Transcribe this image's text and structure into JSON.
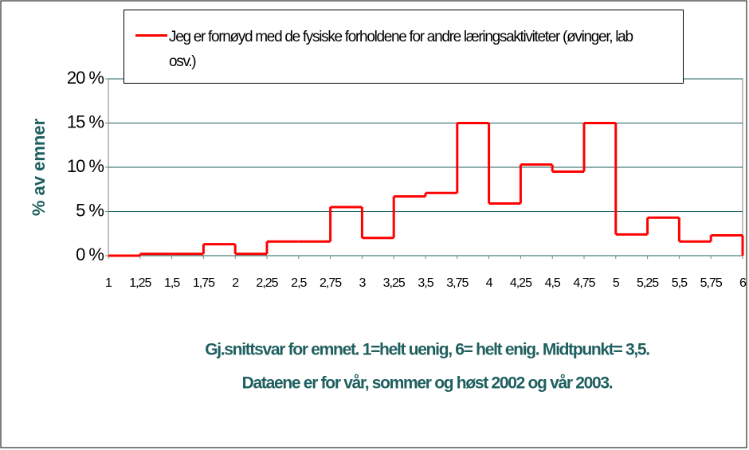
{
  "chart_data": {
    "type": "histogram",
    "y_label": "% av emner",
    "x_label": [
      "Gj.snittsvar for emnet. 1=helt uenig, 6= helt enig. Midtpunkt= 3,5.",
      "Dataene er for vår, sommer og høst 2002 og vår 2003."
    ],
    "bins": [
      1,
      1.25,
      1.5,
      1.75,
      2,
      2.25,
      2.5,
      2.75,
      3,
      3.25,
      3.5,
      3.75,
      4,
      4.25,
      4.5,
      4.75,
      5,
      5.25,
      5.5,
      5.75,
      6
    ],
    "series": [
      {
        "name": "Jeg er fornøyd med de fysiske forholdene for andre læringsaktiviteter (øvinger, lab osv.)",
        "color": "#ff0000",
        "values": [
          0,
          0.2,
          0.2,
          1.3,
          0.2,
          1.6,
          1.6,
          5.5,
          2.0,
          6.7,
          7.1,
          15,
          5.9,
          10.3,
          9.5,
          15,
          2.4,
          4.3,
          1.6,
          2.3
        ]
      }
    ],
    "xlim": [
      1,
      6
    ],
    "xticks": [
      1,
      {
        "value": 1.25,
        "label": "1,25"
      },
      {
        "value": 1.5,
        "label": "1,5"
      },
      {
        "value": 1.75,
        "label": "1,75"
      },
      2,
      {
        "value": 2.25,
        "label": "2,25"
      },
      {
        "value": 2.5,
        "label": "2,5"
      },
      {
        "value": 2.75,
        "label": "2,75"
      },
      3,
      {
        "value": 3.25,
        "label": "3,25"
      },
      {
        "value": 3.5,
        "label": "3,5"
      },
      {
        "value": 3.75,
        "label": "3,75"
      },
      4,
      {
        "value": 4.25,
        "label": "4,25"
      },
      {
        "value": 4.5,
        "label": "4,5"
      },
      {
        "value": 4.75,
        "label": "4,75"
      },
      5,
      {
        "value": 5.25,
        "label": "5,25"
      },
      {
        "value": 5.5,
        "label": "5,5"
      },
      {
        "value": 5.75,
        "label": "5,75"
      },
      6
    ],
    "ylim": [
      0,
      20
    ],
    "yticks": [
      {
        "value": 0,
        "label": "0 %"
      },
      {
        "value": 5,
        "label": "5 %"
      },
      {
        "value": 10,
        "label": "10 %"
      },
      {
        "value": 15,
        "label": "15 %"
      },
      {
        "value": 20,
        "label": "20 %"
      }
    ],
    "grid": true
  }
}
